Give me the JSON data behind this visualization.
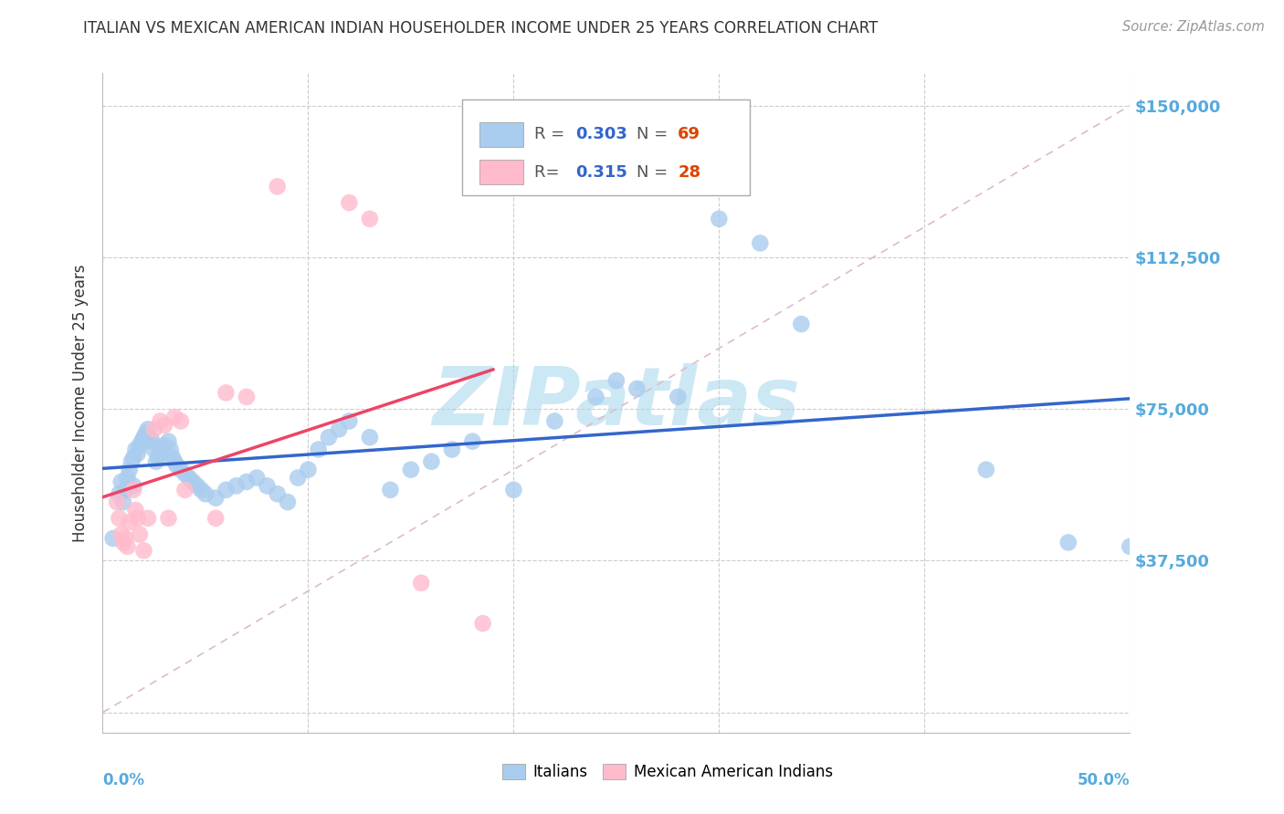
{
  "title": "ITALIAN VS MEXICAN AMERICAN INDIAN HOUSEHOLDER INCOME UNDER 25 YEARS CORRELATION CHART",
  "source": "Source: ZipAtlas.com",
  "ylabel": "Householder Income Under 25 years",
  "yticks": [
    0,
    37500,
    75000,
    112500,
    150000
  ],
  "ytick_labels": [
    "",
    "$37,500",
    "$75,000",
    "$112,500",
    "$150,000"
  ],
  "xmin": 0.0,
  "xmax": 0.5,
  "ymin": -5000,
  "ymax": 158000,
  "blue_R": "0.303",
  "blue_N": "69",
  "pink_R": "0.315",
  "pink_N": "28",
  "blue_color": "#aaccee",
  "pink_color": "#ffbbcc",
  "blue_line_color": "#3366cc",
  "pink_line_color": "#ee4466",
  "legend_R_color": "#3366cc",
  "legend_N_color": "#dd4400",
  "title_color": "#333333",
  "axis_label_color": "#333333",
  "tick_label_color": "#55aadd",
  "watermark": "ZIPatlas",
  "watermark_color": "#cce8f4",
  "grid_color": "#cccccc",
  "ref_line_color": "#ddbbcc",
  "blue_scatter_x": [
    0.005,
    0.008,
    0.009,
    0.01,
    0.011,
    0.012,
    0.013,
    0.014,
    0.015,
    0.015,
    0.016,
    0.017,
    0.018,
    0.019,
    0.02,
    0.021,
    0.022,
    0.023,
    0.024,
    0.025,
    0.026,
    0.027,
    0.028,
    0.029,
    0.03,
    0.032,
    0.033,
    0.034,
    0.035,
    0.036,
    0.038,
    0.04,
    0.042,
    0.044,
    0.046,
    0.048,
    0.05,
    0.055,
    0.06,
    0.065,
    0.07,
    0.075,
    0.08,
    0.085,
    0.09,
    0.095,
    0.1,
    0.105,
    0.11,
    0.115,
    0.12,
    0.13,
    0.14,
    0.15,
    0.16,
    0.17,
    0.18,
    0.2,
    0.22,
    0.24,
    0.25,
    0.26,
    0.28,
    0.3,
    0.32,
    0.34,
    0.43,
    0.47,
    0.5
  ],
  "blue_scatter_y": [
    43000,
    54000,
    57000,
    52000,
    55000,
    58000,
    60000,
    62000,
    63000,
    56000,
    65000,
    64000,
    66000,
    67000,
    68000,
    69000,
    70000,
    68000,
    67000,
    65000,
    62000,
    63000,
    64000,
    65000,
    66000,
    67000,
    65000,
    63000,
    62000,
    61000,
    60000,
    59000,
    58000,
    57000,
    56000,
    55000,
    54000,
    53000,
    55000,
    56000,
    57000,
    58000,
    56000,
    54000,
    52000,
    58000,
    60000,
    65000,
    68000,
    70000,
    72000,
    68000,
    55000,
    60000,
    62000,
    65000,
    67000,
    55000,
    72000,
    78000,
    82000,
    80000,
    78000,
    122000,
    116000,
    96000,
    60000,
    42000,
    41000
  ],
  "pink_scatter_x": [
    0.007,
    0.008,
    0.009,
    0.01,
    0.011,
    0.012,
    0.013,
    0.015,
    0.016,
    0.017,
    0.018,
    0.02,
    0.022,
    0.025,
    0.028,
    0.03,
    0.032,
    0.035,
    0.038,
    0.04,
    0.055,
    0.06,
    0.07,
    0.085,
    0.12,
    0.13,
    0.155,
    0.185
  ],
  "pink_scatter_y": [
    52000,
    48000,
    44000,
    42000,
    43000,
    41000,
    47000,
    55000,
    50000,
    48000,
    44000,
    40000,
    48000,
    70000,
    72000,
    71000,
    48000,
    73000,
    72000,
    55000,
    48000,
    79000,
    78000,
    130000,
    126000,
    122000,
    32000,
    22000
  ],
  "ref_line_x": [
    0.0,
    0.5
  ],
  "ref_line_y": [
    0,
    150000
  ]
}
